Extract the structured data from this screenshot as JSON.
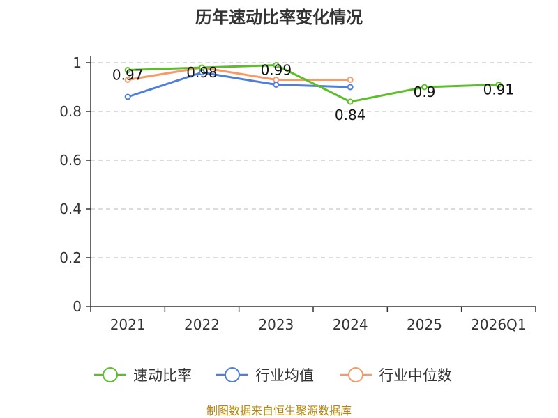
{
  "chart_data": {
    "type": "line",
    "title": "历年速动比率变化情况",
    "categories": [
      "2021",
      "2022",
      "2023",
      "2024",
      "2025",
      "2026Q1"
    ],
    "y_ticks": [
      "0",
      "0.2",
      "0.4",
      "0.6",
      "0.8",
      "1"
    ],
    "ylim": [
      0,
      1
    ],
    "grid": true,
    "legend_position": "bottom",
    "series": [
      {
        "name": "速动比率",
        "color": "#5cbf2a",
        "values": [
          0.97,
          0.98,
          0.99,
          0.84,
          0.9,
          0.91
        ],
        "labels": [
          "0.97",
          "0.98",
          "0.99",
          "0.84",
          "0.9",
          "0.91"
        ]
      },
      {
        "name": "行业均值",
        "color": "#4f7fd9",
        "values": [
          0.86,
          0.96,
          0.91,
          0.9,
          null,
          null
        ]
      },
      {
        "name": "行业中位数",
        "color": "#f79a6a",
        "values": [
          0.93,
          0.98,
          0.93,
          0.93,
          null,
          null
        ]
      }
    ],
    "source": "制图数据来自恒生聚源数据库"
  }
}
